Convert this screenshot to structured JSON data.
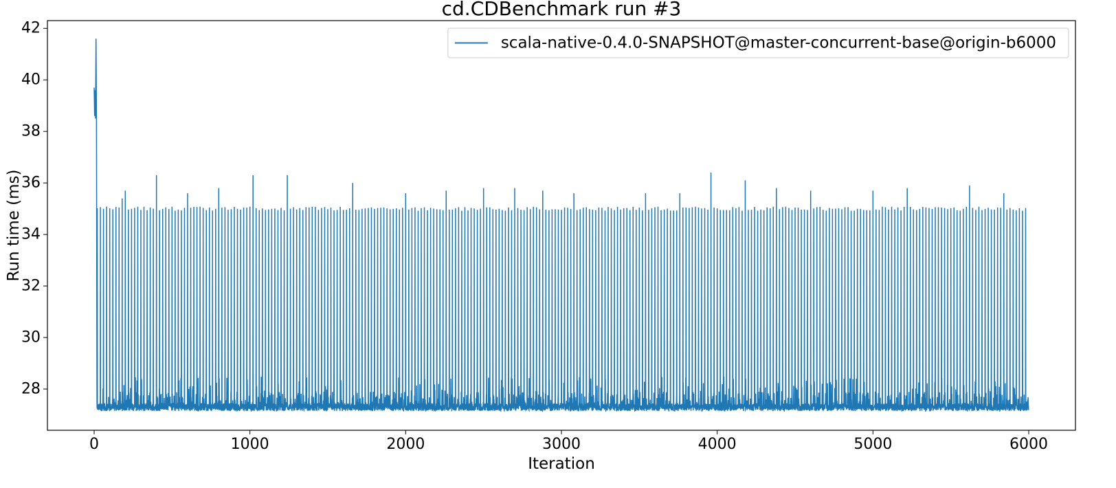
{
  "chart_data": {
    "type": "line",
    "title": "cd.CDBenchmark run #3",
    "xlabel": "Iteration",
    "ylabel": "Run time (ms)",
    "xlim": [
      -300,
      6300
    ],
    "ylim": [
      26.4,
      42.3
    ],
    "xticks": [
      0,
      1000,
      2000,
      3000,
      4000,
      5000,
      6000
    ],
    "yticks": [
      28,
      30,
      32,
      34,
      36,
      38,
      40,
      42
    ],
    "grid": false,
    "legend_position": "top-right",
    "series": [
      {
        "name": "scala-native-0.4.0-SNAPSHOT@master-concurrent-base@origin-b6000",
        "color": "#1f77b4",
        "x_range": [
          0,
          5999
        ],
        "warmup": [
          {
            "x": 0,
            "y": 39.7
          },
          {
            "x": 3,
            "y": 38.6
          },
          {
            "x": 6,
            "y": 39.6
          },
          {
            "x": 9,
            "y": 38.5
          },
          {
            "x": 12,
            "y": 41.6
          },
          {
            "x": 15,
            "y": 38.4
          },
          {
            "x": 18,
            "y": 27.5
          }
        ],
        "baseline_min": 27.15,
        "baseline_max": 27.45,
        "noise_max": 28.5,
        "spike_interval": 20,
        "spike_typical": 35.0,
        "spike_peaks": [
          {
            "x": 170,
            "y": 35.4
          },
          {
            "x": 190,
            "y": 35.7
          },
          {
            "x": 390,
            "y": 36.3
          },
          {
            "x": 590,
            "y": 35.6
          },
          {
            "x": 800,
            "y": 35.8
          },
          {
            "x": 1010,
            "y": 36.3
          },
          {
            "x": 1230,
            "y": 36.3
          },
          {
            "x": 1650,
            "y": 36.0
          },
          {
            "x": 1990,
            "y": 35.6
          },
          {
            "x": 2250,
            "y": 35.7
          },
          {
            "x": 2490,
            "y": 35.8
          },
          {
            "x": 2690,
            "y": 35.8
          },
          {
            "x": 2870,
            "y": 35.7
          },
          {
            "x": 3080,
            "y": 35.6
          },
          {
            "x": 3530,
            "y": 35.6
          },
          {
            "x": 3750,
            "y": 35.6
          },
          {
            "x": 3950,
            "y": 36.4
          },
          {
            "x": 4170,
            "y": 36.1
          },
          {
            "x": 4370,
            "y": 35.8
          },
          {
            "x": 4590,
            "y": 35.7
          },
          {
            "x": 4990,
            "y": 35.7
          },
          {
            "x": 5210,
            "y": 35.8
          },
          {
            "x": 5610,
            "y": 35.9
          },
          {
            "x": 5830,
            "y": 35.6
          }
        ]
      }
    ]
  }
}
